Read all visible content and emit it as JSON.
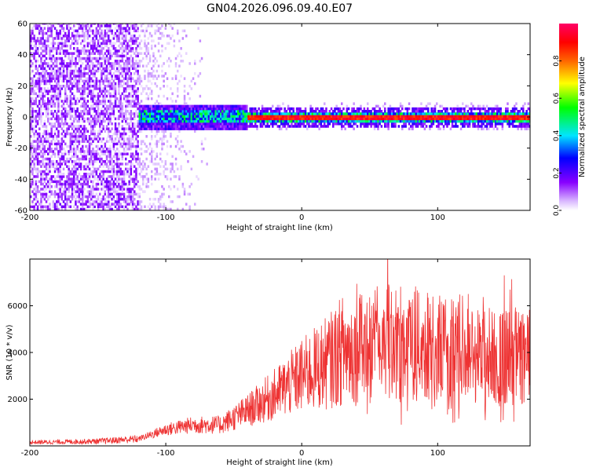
{
  "title": "GN04.2026.096.09.40.E07",
  "chart_data": [
    {
      "type": "heatmap",
      "xlabel": "Height of straight line (km)",
      "ylabel": "Frequency (Hz)",
      "xlim": [
        -200,
        168
      ],
      "ylim": [
        -60,
        60
      ],
      "xticks": [
        -200,
        -100,
        0,
        100
      ],
      "yticks": [
        60,
        40,
        20,
        0,
        -20,
        -40,
        -60
      ],
      "colorbar": {
        "label": "Normalized spectral amplitude",
        "range": [
          0,
          1
        ],
        "ticks": [
          0.0,
          0.2,
          0.4,
          0.6,
          0.8
        ],
        "tick_labels": [
          "0.0",
          "0.2",
          "0.4",
          "0.6",
          "0.8"
        ],
        "colormap": [
          "#ffffff",
          "#d9b8ff",
          "#8800ff",
          "#0000ff",
          "#00e5ff",
          "#00ff00",
          "#ffff00",
          "#ff6600",
          "#ff0000",
          "#ff0066"
        ]
      },
      "regions": [
        {
          "x_range": [
            -200,
            -120
          ],
          "description": "broadband noise",
          "f_range": [
            -60,
            60
          ],
          "amplitude": 0.1
        },
        {
          "x_range": [
            -120,
            -70
          ],
          "description": "sparse noise",
          "f_range": [
            -60,
            60
          ],
          "amplitude": 0.03
        },
        {
          "x_range": [
            -120,
            -40
          ],
          "description": "narrowband signal",
          "f_range": [
            -8,
            8
          ],
          "amplitude": 0.4
        },
        {
          "x_range": [
            -40,
            168
          ],
          "description": "strong line at 0 Hz",
          "f_range": [
            -3,
            3
          ],
          "amplitude": 0.85
        }
      ]
    },
    {
      "type": "line",
      "xlabel": "Height of straight line (km)",
      "ylabel": "SNR (10 * v/v)",
      "xlim": [
        -200,
        168
      ],
      "ylim": [
        0,
        8000
      ],
      "xticks": [
        -200,
        -100,
        0,
        100
      ],
      "yticks": [
        2000,
        4000,
        6000
      ],
      "color": "#ee3333",
      "series": [
        {
          "name": "SNR",
          "x": [
            -200,
            -150,
            -120,
            -100,
            -80,
            -60,
            -40,
            -20,
            0,
            20,
            30,
            40,
            50,
            60,
            80,
            100,
            120,
            140,
            168
          ],
          "values": [
            150,
            200,
            300,
            700,
            900,
            900,
            1500,
            2200,
            3000,
            3600,
            4100,
            4100,
            4300,
            4500,
            4300,
            4200,
            4000,
            3800,
            3800
          ]
        }
      ]
    }
  ]
}
